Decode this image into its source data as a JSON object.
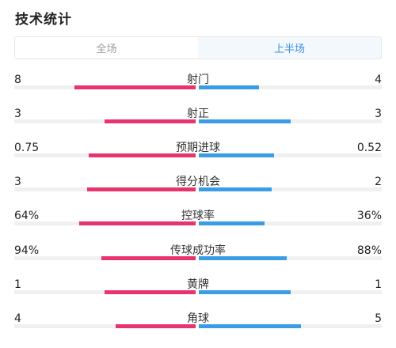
{
  "header": {
    "title": "技术统计"
  },
  "tabs": [
    {
      "label": "全场",
      "active": false
    },
    {
      "label": "上半场",
      "active": true
    }
  ],
  "colors": {
    "home": "#e8336d",
    "away": "#3b9ce6",
    "track": "#f0f0f0",
    "accent": "#3a8ee6"
  },
  "stats": [
    {
      "label": "射门",
      "home": "8",
      "away": "4",
      "home_ratio": 0.67,
      "away_ratio": 0.33
    },
    {
      "label": "射正",
      "home": "3",
      "away": "3",
      "home_ratio": 0.5,
      "away_ratio": 0.5
    },
    {
      "label": "预期进球",
      "home": "0.75",
      "away": "0.52",
      "home_ratio": 0.59,
      "away_ratio": 0.41
    },
    {
      "label": "得分机会",
      "home": "3",
      "away": "2",
      "home_ratio": 0.6,
      "away_ratio": 0.4
    },
    {
      "label": "控球率",
      "home": "64%",
      "away": "36%",
      "home_ratio": 0.64,
      "away_ratio": 0.36
    },
    {
      "label": "传球成功率",
      "home": "94%",
      "away": "88%",
      "home_ratio": 0.52,
      "away_ratio": 0.48
    },
    {
      "label": "黄牌",
      "home": "1",
      "away": "1",
      "home_ratio": 0.5,
      "away_ratio": 0.5
    },
    {
      "label": "角球",
      "home": "4",
      "away": "5",
      "home_ratio": 0.44,
      "away_ratio": 0.56
    }
  ]
}
